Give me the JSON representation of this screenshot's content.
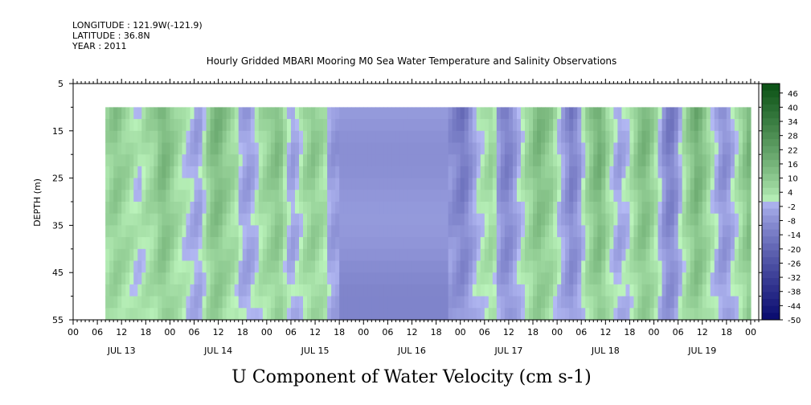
{
  "header": {
    "longitude": "LONGITUDE : 121.9W(-121.9)",
    "latitude": "LATITUDE : 36.8N",
    "year": "YEAR : 2011"
  },
  "chart_data": {
    "type": "heatmap",
    "title": "Hourly Gridded MBARI Mooring M0 Sea Water Temperature and Salinity Observations",
    "xlabel": "",
    "ylabel": "DEPTH (m)",
    "bottom_label": "U Component of Water Velocity (cm s-1)",
    "y_ticks": [
      5,
      15,
      25,
      35,
      45,
      55
    ],
    "ylim": [
      5,
      55
    ],
    "y_inverted": true,
    "data_depth_range": [
      10,
      55
    ],
    "hour_ticks": [
      "00",
      "06",
      "12",
      "18",
      "00",
      "06",
      "12",
      "18",
      "00",
      "06",
      "12",
      "18",
      "00",
      "06",
      "12",
      "18",
      "00",
      "06",
      "12",
      "18",
      "00",
      "06",
      "12",
      "18",
      "00",
      "06",
      "12",
      "18",
      "00"
    ],
    "day_labels": [
      "JUL 13",
      "JUL 14",
      "JUL 15",
      "JUL 16",
      "JUL 17",
      "JUL 18",
      "JUL 19"
    ],
    "x_range_hours": [
      0,
      170
    ],
    "data_start_hour": 8,
    "colorbar": {
      "labels": [
        "46",
        "40",
        "34",
        "28",
        "22",
        "16",
        "10",
        "4",
        "-2",
        "-8",
        "-14",
        "-20",
        "-26",
        "-32",
        "-38",
        "-44",
        "-50"
      ],
      "min": -50,
      "max": 50,
      "step": 3
    },
    "series_profile": {
      "description_units": "cm s-1",
      "hourly_mean_u": [
        6,
        8,
        10,
        9,
        7,
        6,
        4,
        2,
        1,
        3,
        5,
        6,
        8,
        12,
        14,
        12,
        9,
        6,
        4,
        2,
        0,
        -2,
        -4,
        -3,
        2,
        8,
        12,
        14,
        13,
        10,
        8,
        6,
        4,
        -2,
        -4,
        -5,
        -3,
        0,
        4,
        6,
        8,
        10,
        12,
        10,
        4,
        -2,
        -4,
        -2,
        2,
        6,
        8,
        10,
        8,
        6,
        4,
        -4,
        -6,
        -6,
        -6,
        -6,
        -6,
        -6,
        -6,
        -6,
        -6,
        -6,
        -6,
        -6,
        -6,
        -6,
        -6,
        -6,
        -6,
        -6,
        -6,
        -6,
        -6,
        -6,
        -6,
        -6,
        -6,
        -6,
        -6,
        -6,
        -6,
        -8,
        -10,
        -12,
        -14,
        -12,
        -8,
        -4,
        0,
        2,
        4,
        6,
        4,
        -6,
        -10,
        -12,
        -10,
        -6,
        -2,
        2,
        6,
        8,
        12,
        14,
        12,
        10,
        8,
        4,
        0,
        -4,
        -8,
        -12,
        -10,
        -6,
        0,
        6,
        10,
        14,
        16,
        12,
        6,
        2,
        -2,
        -4,
        -2,
        0,
        4,
        8,
        12,
        14,
        12,
        8,
        4,
        -2,
        -8,
        -12,
        -12,
        -8,
        -2,
        4,
        8,
        12,
        16,
        14,
        10,
        6,
        2,
        -2,
        -6,
        -8,
        -6,
        -2,
        2,
        6,
        10,
        14
      ]
    }
  }
}
